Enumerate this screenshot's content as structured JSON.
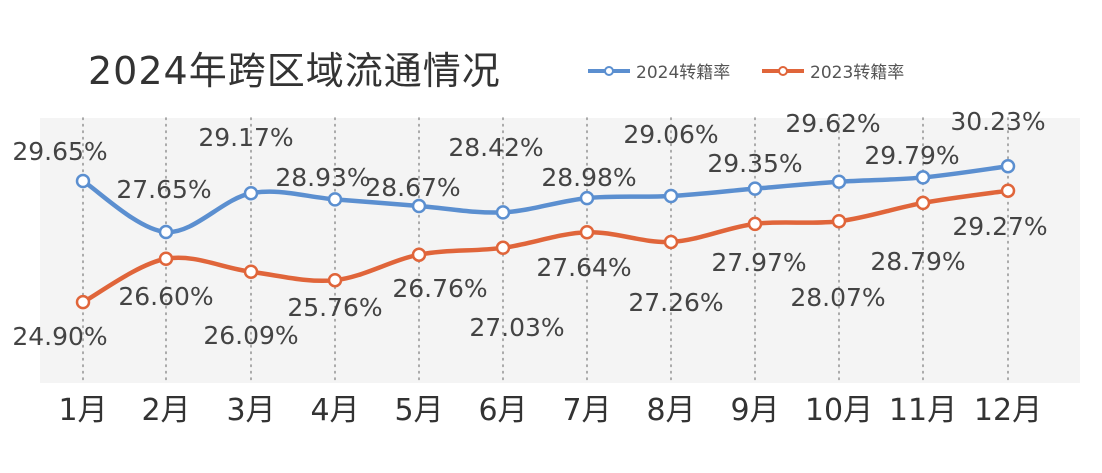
{
  "chart_data": {
    "type": "line",
    "title": "2024年跨区域流通情况",
    "categories": [
      "1月",
      "2月",
      "3月",
      "4月",
      "5月",
      "6月",
      "7月",
      "8月",
      "9月",
      "10月",
      "11月",
      "12月"
    ],
    "series": [
      {
        "name": "2024转籍率",
        "color": "#5b8fd0",
        "values": [
          29.65,
          27.65,
          29.17,
          28.93,
          28.67,
          28.42,
          28.98,
          29.06,
          29.35,
          29.62,
          29.79,
          30.23
        ],
        "labels": [
          "29.65%",
          "27.65%",
          "29.17%",
          "28.93%",
          "28.67%",
          "28.42%",
          "28.98%",
          "29.06%",
          "29.35%",
          "29.62%",
          "29.79%",
          "30.23%"
        ]
      },
      {
        "name": "2023转籍率",
        "color": "#e0653a",
        "values": [
          24.9,
          26.6,
          26.09,
          25.76,
          26.76,
          27.03,
          27.64,
          27.26,
          27.97,
          28.07,
          28.79,
          29.27
        ],
        "labels": [
          "24.90%",
          "26.60%",
          "26.09%",
          "25.76%",
          "26.76%",
          "27.03%",
          "27.64%",
          "27.26%",
          "27.97%",
          "28.07%",
          "28.79%",
          "29.27%"
        ]
      }
    ],
    "grid": "vertical dotted",
    "legend_position": "top-right"
  }
}
